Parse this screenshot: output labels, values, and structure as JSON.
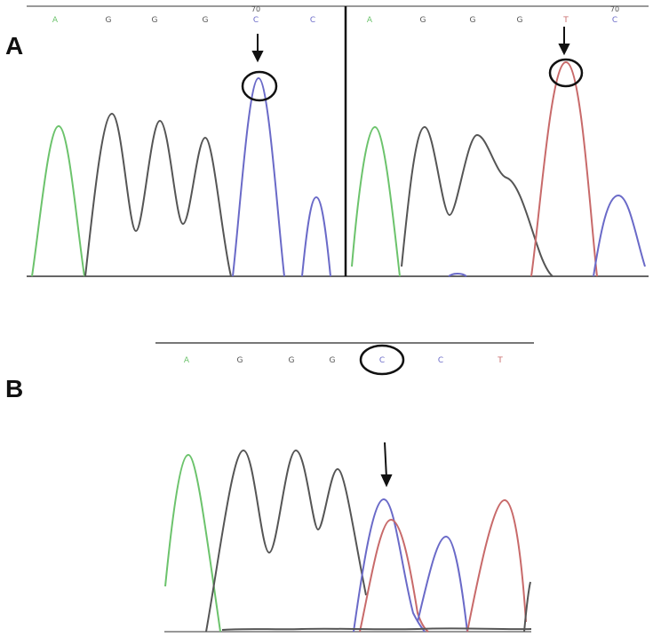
{
  "figure": {
    "panel_a_label": "A",
    "panel_b_label": "B"
  },
  "panel_a_left": {
    "bases": [
      "A",
      "G",
      "G",
      "G",
      "C",
      "C"
    ],
    "position_number": "70",
    "marked_base": "C"
  },
  "panel_a_right": {
    "bases": [
      "A",
      "G",
      "G",
      "G",
      "T",
      "C"
    ],
    "position_number": "70",
    "marked_base": "T"
  },
  "panel_b": {
    "bases": [
      "A",
      "G",
      "G",
      "G",
      "C",
      "C",
      "T"
    ],
    "marked_base": "C"
  },
  "colors": {
    "A": "#6cc36c",
    "G": "#555555",
    "C": "#6a6ac8",
    "T": "#c86a6a",
    "axis": "#777777",
    "annotation": "#111111"
  }
}
